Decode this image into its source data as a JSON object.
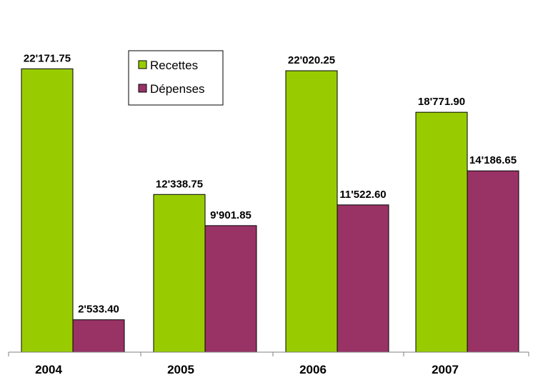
{
  "chart_data": {
    "type": "bar",
    "categories": [
      "2004",
      "2005",
      "2006",
      "2007"
    ],
    "series": [
      {
        "name": "Recettes",
        "color": "#99cc00",
        "values": [
          22171.75,
          12338.75,
          22020.25,
          18771.9
        ],
        "labels": [
          "22'171.75",
          "12'338.75",
          "22'020.25",
          "18'771.90"
        ]
      },
      {
        "name": "Dépenses",
        "color": "#993366",
        "values": [
          2533.4,
          9901.85,
          11522.6,
          14186.65
        ],
        "labels": [
          "2'533.40",
          "9'901.85",
          "11'522.60",
          "14'186.65"
        ]
      }
    ],
    "ylim": [
      0,
      25600
    ],
    "legend": "top-left",
    "grid": false
  }
}
